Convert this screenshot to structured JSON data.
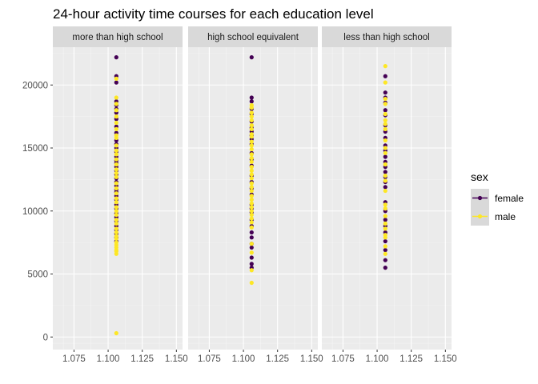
{
  "chart_data": {
    "type": "scatter",
    "title": "24-hour activity time courses for each education level",
    "xlabel": "",
    "ylabel": "",
    "xlim": [
      1.0595,
      1.1545
    ],
    "ylim": [
      -1000,
      23000
    ],
    "x_ticks": [
      "1.075",
      "1.100",
      "1.125",
      "1.150"
    ],
    "x_tick_values": [
      1.075,
      1.1,
      1.125,
      1.15
    ],
    "y_ticks": [
      "0",
      "5000",
      "10000",
      "15000",
      "20000"
    ],
    "y_tick_values": [
      0,
      5000,
      10000,
      15000,
      20000
    ],
    "grid": true,
    "legend": {
      "title": "sex",
      "position": "right",
      "entries": [
        {
          "label": "female",
          "color": "#440154"
        },
        {
          "label": "male",
          "color": "#FDE725"
        }
      ]
    },
    "colors": {
      "female": "#440154",
      "male": "#FDE725"
    },
    "panels": [
      {
        "label": "more than high school",
        "x": 1.106,
        "series": [
          {
            "name": "female",
            "values": [
              22200,
              20700,
              20200,
              18700,
              18400,
              18100,
              17800,
              17300,
              16700,
              16200,
              15600,
              15300,
              15000,
              14700,
              14300,
              14000,
              13800,
              13500,
              13200,
              12900,
              12600,
              12300,
              12000,
              11700,
              11500,
              11200,
              10900,
              10500,
              10200,
              9800,
              9500,
              9200,
              8800,
              8500,
              8200,
              7900,
              7600
            ]
          },
          {
            "name": "male",
            "values": [
              20500,
              19000,
              18500,
              18000,
              17500,
              17000,
              16500,
              16000,
              15800,
              15200,
              14800,
              14500,
              14100,
              13700,
              13300,
              13000,
              12700,
              12200,
              11800,
              11400,
              11000,
              10700,
              10300,
              10000,
              9700,
              9300,
              9000,
              8600,
              8300,
              8000,
              7800,
              7500,
              7300,
              7100,
              6900,
              6800,
              6600,
              300
            ]
          }
        ]
      },
      {
        "label": "high school equivalent",
        "x": 1.106,
        "series": [
          {
            "name": "female",
            "values": [
              22200,
              19000,
              18700,
              18100,
              17700,
              17100,
              16600,
              16300,
              16000,
              15700,
              15300,
              14600,
              14100,
              13600,
              12800,
              12300,
              11800,
              11300,
              10500,
              10200,
              9900,
              9300,
              8800,
              8300,
              7900,
              7400,
              7100,
              6300,
              5800,
              5500
            ]
          },
          {
            "name": "male",
            "values": [
              18400,
              18200,
              17800,
              17500,
              17200,
              16800,
              16500,
              16100,
              15900,
              15500,
              15200,
              14900,
              14500,
              14200,
              13900,
              13500,
              13200,
              12900,
              12600,
              12200,
              11900,
              11600,
              11200,
              10900,
              10600,
              10300,
              10000,
              9700,
              9400,
              9100,
              8700,
              7400,
              6700,
              5300,
              4300
            ]
          }
        ]
      },
      {
        "label": "less than high school",
        "x": 1.106,
        "series": [
          {
            "name": "female",
            "values": [
              20700,
              19400,
              19000,
              18600,
              18000,
              17600,
              16800,
              16300,
              15800,
              15200,
              14800,
              14300,
              13900,
              13500,
              13100,
              12700,
              12300,
              11900,
              10700,
              10000,
              9300,
              8800,
              8300,
              7600,
              6900,
              6100,
              5500
            ]
          },
          {
            "name": "male",
            "values": [
              21500,
              20200,
              18900,
              18500,
              17700,
              17200,
              16900,
              16500,
              15600,
              15000,
              14600,
              13700,
              12800,
              12400,
              11600,
              10500,
              10200,
              9600,
              9000,
              8600,
              8100,
              7900,
              7200,
              6600
            ]
          }
        ]
      }
    ]
  }
}
